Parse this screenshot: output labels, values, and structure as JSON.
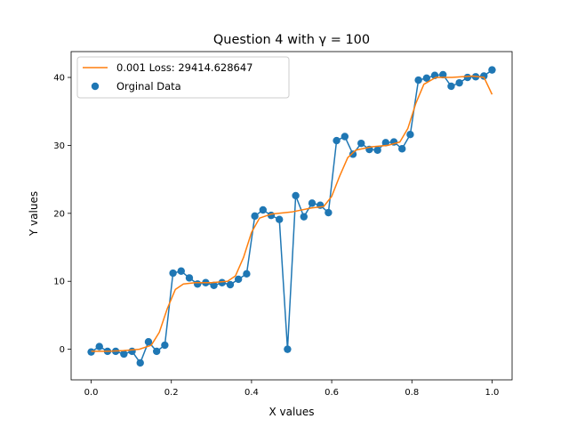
{
  "chart_data": {
    "type": "line",
    "title": "Question 4 with γ = 100",
    "xlabel": "X values",
    "ylabel": "Y values",
    "xlim": [
      -0.05,
      1.05
    ],
    "ylim": [
      -4.5,
      43.8
    ],
    "xticks": [
      0.0,
      0.2,
      0.4,
      0.6,
      0.8,
      1.0
    ],
    "xtick_labels": [
      "0.0",
      "0.2",
      "0.4",
      "0.6",
      "0.8",
      "1.0"
    ],
    "yticks": [
      0,
      10,
      20,
      30,
      40
    ],
    "ytick_labels": [
      "0",
      "10",
      "20",
      "30",
      "40"
    ],
    "grid": false,
    "legend_position": "top-left",
    "series": [
      {
        "name": "0.001 Loss: 29414.628647",
        "kind": "line",
        "color": "#ff7f0e",
        "x": [
          0.0,
          0.04,
          0.08,
          0.12,
          0.15,
          0.17,
          0.19,
          0.21,
          0.23,
          0.26,
          0.3,
          0.34,
          0.36,
          0.38,
          0.4,
          0.42,
          0.45,
          0.5,
          0.55,
          0.58,
          0.6,
          0.62,
          0.64,
          0.66,
          0.7,
          0.74,
          0.77,
          0.79,
          0.81,
          0.83,
          0.86,
          0.9,
          0.95,
          0.98,
          1.0
        ],
        "y": [
          -0.3,
          -0.3,
          -0.2,
          0.0,
          0.6,
          2.5,
          6.0,
          8.8,
          9.6,
          9.8,
          9.8,
          10.0,
          10.8,
          13.5,
          17.2,
          19.3,
          19.9,
          20.2,
          20.8,
          21.0,
          22.5,
          25.5,
          28.2,
          29.3,
          29.8,
          30.0,
          30.5,
          32.5,
          36.2,
          39.0,
          40.0,
          40.0,
          40.2,
          40.0,
          37.5
        ]
      },
      {
        "name": "Orginal Data",
        "kind": "scatter-line",
        "color": "#1f77b4",
        "x": [
          0.0,
          0.0204,
          0.0408,
          0.0612,
          0.0816,
          0.102,
          0.1224,
          0.1429,
          0.1633,
          0.1837,
          0.2041,
          0.2245,
          0.2449,
          0.2653,
          0.2857,
          0.3061,
          0.3265,
          0.3469,
          0.3673,
          0.3878,
          0.4082,
          0.4286,
          0.449,
          0.4694,
          0.4898,
          0.5102,
          0.5306,
          0.551,
          0.5714,
          0.5918,
          0.6122,
          0.6327,
          0.6531,
          0.6735,
          0.6939,
          0.7143,
          0.7347,
          0.7551,
          0.7755,
          0.7959,
          0.8163,
          0.8367,
          0.8571,
          0.8776,
          0.898,
          0.9184,
          0.9388,
          0.9592,
          0.9796,
          1.0
        ],
        "y": [
          -0.4,
          0.4,
          -0.3,
          -0.3,
          -0.7,
          -0.3,
          -2.0,
          1.1,
          -0.3,
          0.6,
          11.2,
          11.5,
          10.5,
          9.6,
          9.8,
          9.4,
          9.8,
          9.5,
          10.3,
          11.1,
          19.6,
          20.5,
          19.7,
          19.1,
          0.0,
          22.6,
          19.5,
          21.5,
          21.2,
          20.1,
          30.7,
          31.3,
          28.7,
          30.3,
          29.4,
          29.3,
          30.4,
          30.5,
          29.5,
          31.6,
          39.6,
          39.9,
          40.3,
          40.4,
          38.7,
          39.2,
          40.0,
          40.1,
          40.2,
          41.1
        ]
      }
    ]
  }
}
